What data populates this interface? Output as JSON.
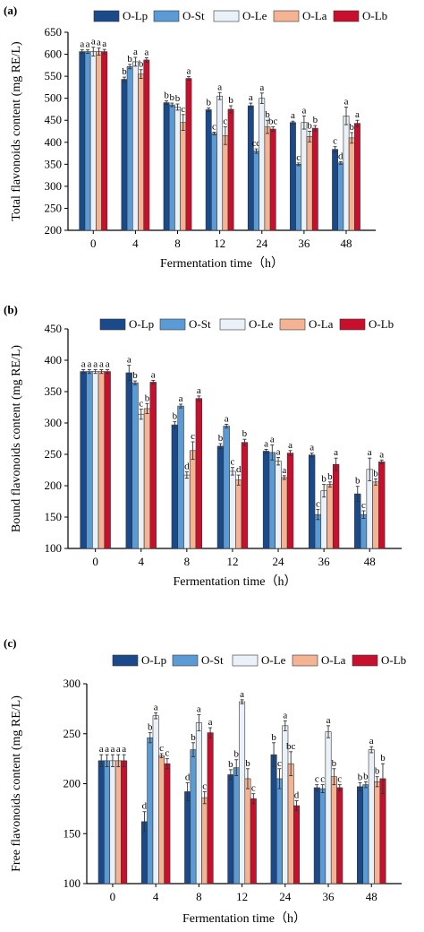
{
  "chart_data": [
    {
      "type": "bar",
      "panel_label": "(a)",
      "ylabel": "Total flavonoids content (mg RE/L)",
      "xlabel": "Fermentation time（h）",
      "ylim": [
        200,
        650
      ],
      "yticks": [
        200,
        250,
        300,
        350,
        400,
        450,
        500,
        550,
        600,
        650
      ],
      "categories": [
        "0",
        "4",
        "8",
        "12",
        "24",
        "36",
        "48"
      ],
      "legend_position": "top",
      "series": [
        {
          "name": "O-Lp",
          "color": "#1a4a8a",
          "values": [
            606,
            543,
            490,
            474,
            483,
            445,
            384
          ],
          "errors": [
            4,
            5,
            4,
            4,
            6,
            3,
            6
          ],
          "letters": [
            "a",
            "b",
            "b",
            "b",
            "a",
            "a",
            "c"
          ]
        },
        {
          "name": "O-St",
          "color": "#5b9bd5",
          "values": [
            606,
            572,
            485,
            420,
            380,
            350,
            353
          ],
          "errors": [
            4,
            5,
            4,
            3,
            5,
            3,
            3
          ],
          "letters": [
            "a",
            "b",
            "b",
            "c",
            "cd",
            "c",
            "d"
          ]
        },
        {
          "name": "O-Le",
          "color": "#eaf1f8",
          "values": [
            606,
            583,
            480,
            505,
            500,
            445,
            460
          ],
          "errors": [
            10,
            10,
            7,
            8,
            12,
            15,
            20
          ],
          "letters": [
            "a",
            "a",
            "b",
            "a",
            "a",
            "a",
            "a"
          ]
        },
        {
          "name": "O-La",
          "color": "#f4b393",
          "values": [
            606,
            555,
            445,
            415,
            435,
            413,
            410
          ],
          "errors": [
            8,
            10,
            18,
            20,
            15,
            12,
            12
          ],
          "letters": [
            "a",
            "b",
            "c",
            "c",
            "b",
            "b",
            "b"
          ]
        },
        {
          "name": "O-Lb",
          "color": "#c8102e",
          "values": [
            606,
            587,
            545,
            475,
            430,
            432,
            443
          ],
          "errors": [
            5,
            5,
            4,
            8,
            5,
            6,
            7
          ],
          "letters": [
            "a",
            "a",
            "a",
            "b",
            "bc",
            "b",
            "a"
          ]
        }
      ]
    },
    {
      "type": "bar",
      "panel_label": "(b)",
      "ylabel": "Bound flavonoids content (mg RE/L)",
      "xlabel": "Fermentation time（h）",
      "ylim": [
        100,
        450
      ],
      "yticks": [
        100,
        150,
        200,
        250,
        300,
        350,
        400,
        450
      ],
      "categories": [
        "0",
        "4",
        "8",
        "12",
        "24",
        "36",
        "48"
      ],
      "legend_position": "top",
      "series": [
        {
          "name": "O-Lp",
          "color": "#1a4a8a",
          "values": [
            382,
            380,
            297,
            263,
            255,
            249,
            187
          ],
          "errors": [
            3,
            12,
            5,
            4,
            3,
            3,
            12
          ],
          "letters": [
            "a",
            "a",
            "b",
            "b",
            "a",
            "a",
            "b"
          ]
        },
        {
          "name": "O-St",
          "color": "#5b9bd5",
          "values": [
            382,
            364,
            327,
            295,
            253,
            154,
            154
          ],
          "errors": [
            3,
            3,
            3,
            3,
            12,
            8,
            6
          ],
          "letters": [
            "a",
            "b",
            "a",
            "a",
            "a",
            "c",
            "c"
          ]
        },
        {
          "name": "O-Le",
          "color": "#eaf1f8",
          "values": [
            382,
            314,
            217,
            223,
            239,
            192,
            226
          ],
          "errors": [
            3,
            8,
            5,
            6,
            6,
            10,
            18
          ],
          "letters": [
            "a",
            "c",
            "d",
            "c",
            "a",
            "b",
            "a"
          ]
        },
        {
          "name": "O-La",
          "color": "#f4b393",
          "values": [
            382,
            323,
            256,
            209,
            213,
            202,
            206
          ],
          "errors": [
            3,
            8,
            14,
            8,
            3,
            4,
            5
          ],
          "letters": [
            "a",
            "b",
            "c",
            "d",
            "a",
            "b",
            "b"
          ]
        },
        {
          "name": "O-Lb",
          "color": "#c8102e",
          "values": [
            382,
            365,
            339,
            269,
            252,
            234,
            238
          ],
          "errors": [
            3,
            3,
            4,
            5,
            4,
            10,
            3
          ],
          "letters": [
            "a",
            "a",
            "a",
            "b",
            "a",
            "a",
            "a"
          ]
        }
      ]
    },
    {
      "type": "bar",
      "panel_label": "(c)",
      "ylabel": "Free flavonoids content (mg RE/L)",
      "xlabel": "Fermentation time（h）",
      "ylim": [
        100,
        300
      ],
      "yticks": [
        100,
        150,
        200,
        250,
        300
      ],
      "categories": [
        "0",
        "4",
        "8",
        "12",
        "24",
        "36",
        "48"
      ],
      "legend_position": "top",
      "series": [
        {
          "name": "O-Lp",
          "color": "#1a4a8a",
          "values": [
            223,
            162,
            192,
            209,
            229,
            196,
            197
          ],
          "errors": [
            6,
            10,
            9,
            5,
            12,
            3,
            4
          ],
          "letters": [
            "a",
            "d",
            "d",
            "b",
            "b",
            "c",
            "b"
          ]
        },
        {
          "name": "O-St",
          "color": "#5b9bd5",
          "values": [
            223,
            246,
            234,
            216,
            205,
            195,
            199
          ],
          "errors": [
            6,
            5,
            7,
            8,
            10,
            4,
            3
          ],
          "letters": [
            "a",
            "b",
            "b",
            "b",
            "c",
            "c",
            "b"
          ]
        },
        {
          "name": "O-Le",
          "color": "#eaf1f8",
          "values": [
            223,
            268,
            261,
            282,
            258,
            252,
            234
          ],
          "errors": [
            6,
            3,
            8,
            2,
            5,
            6,
            3
          ],
          "letters": [
            "a",
            "a",
            "a",
            "a",
            "a",
            "a",
            "a"
          ]
        },
        {
          "name": "O-La",
          "color": "#f4b393",
          "values": [
            223,
            228,
            186,
            205,
            220,
            207,
            202
          ],
          "errors": [
            6,
            2,
            6,
            10,
            12,
            8,
            5
          ],
          "letters": [
            "a",
            "c",
            "c",
            "b",
            "bc",
            "b",
            "b"
          ]
        },
        {
          "name": "O-Lb",
          "color": "#c8102e",
          "values": [
            223,
            220,
            251,
            185,
            178,
            196,
            205
          ],
          "errors": [
            6,
            5,
            5,
            5,
            5,
            3,
            15
          ],
          "letters": [
            "a",
            "c",
            "a",
            "c",
            "d",
            "c",
            "b"
          ]
        }
      ]
    }
  ]
}
